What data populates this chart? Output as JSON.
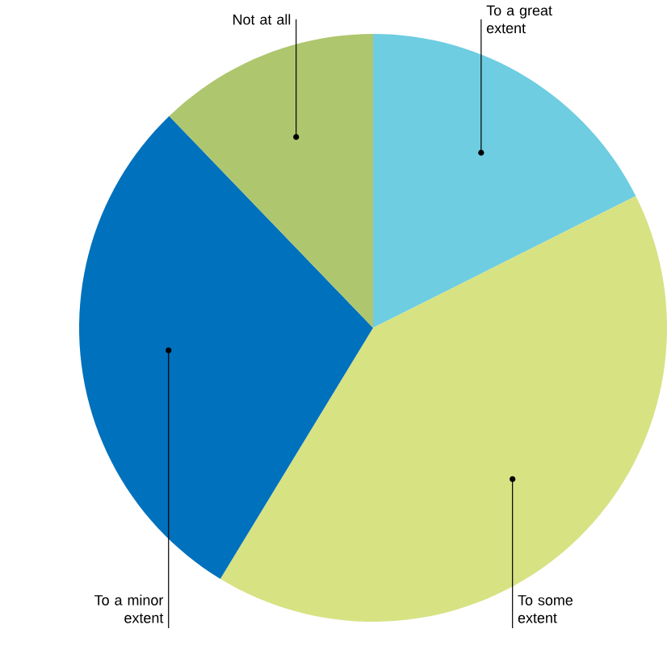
{
  "chart_data": {
    "type": "pie",
    "categories": [
      "To a great extent",
      "To some extent",
      "To a minor extent",
      "Not at all"
    ],
    "values": [
      17.6,
      41.1,
      29.1,
      12.2
    ],
    "colors": [
      "#6ecde0",
      "#d7e283",
      "#0071bc",
      "#aec66e"
    ]
  }
}
